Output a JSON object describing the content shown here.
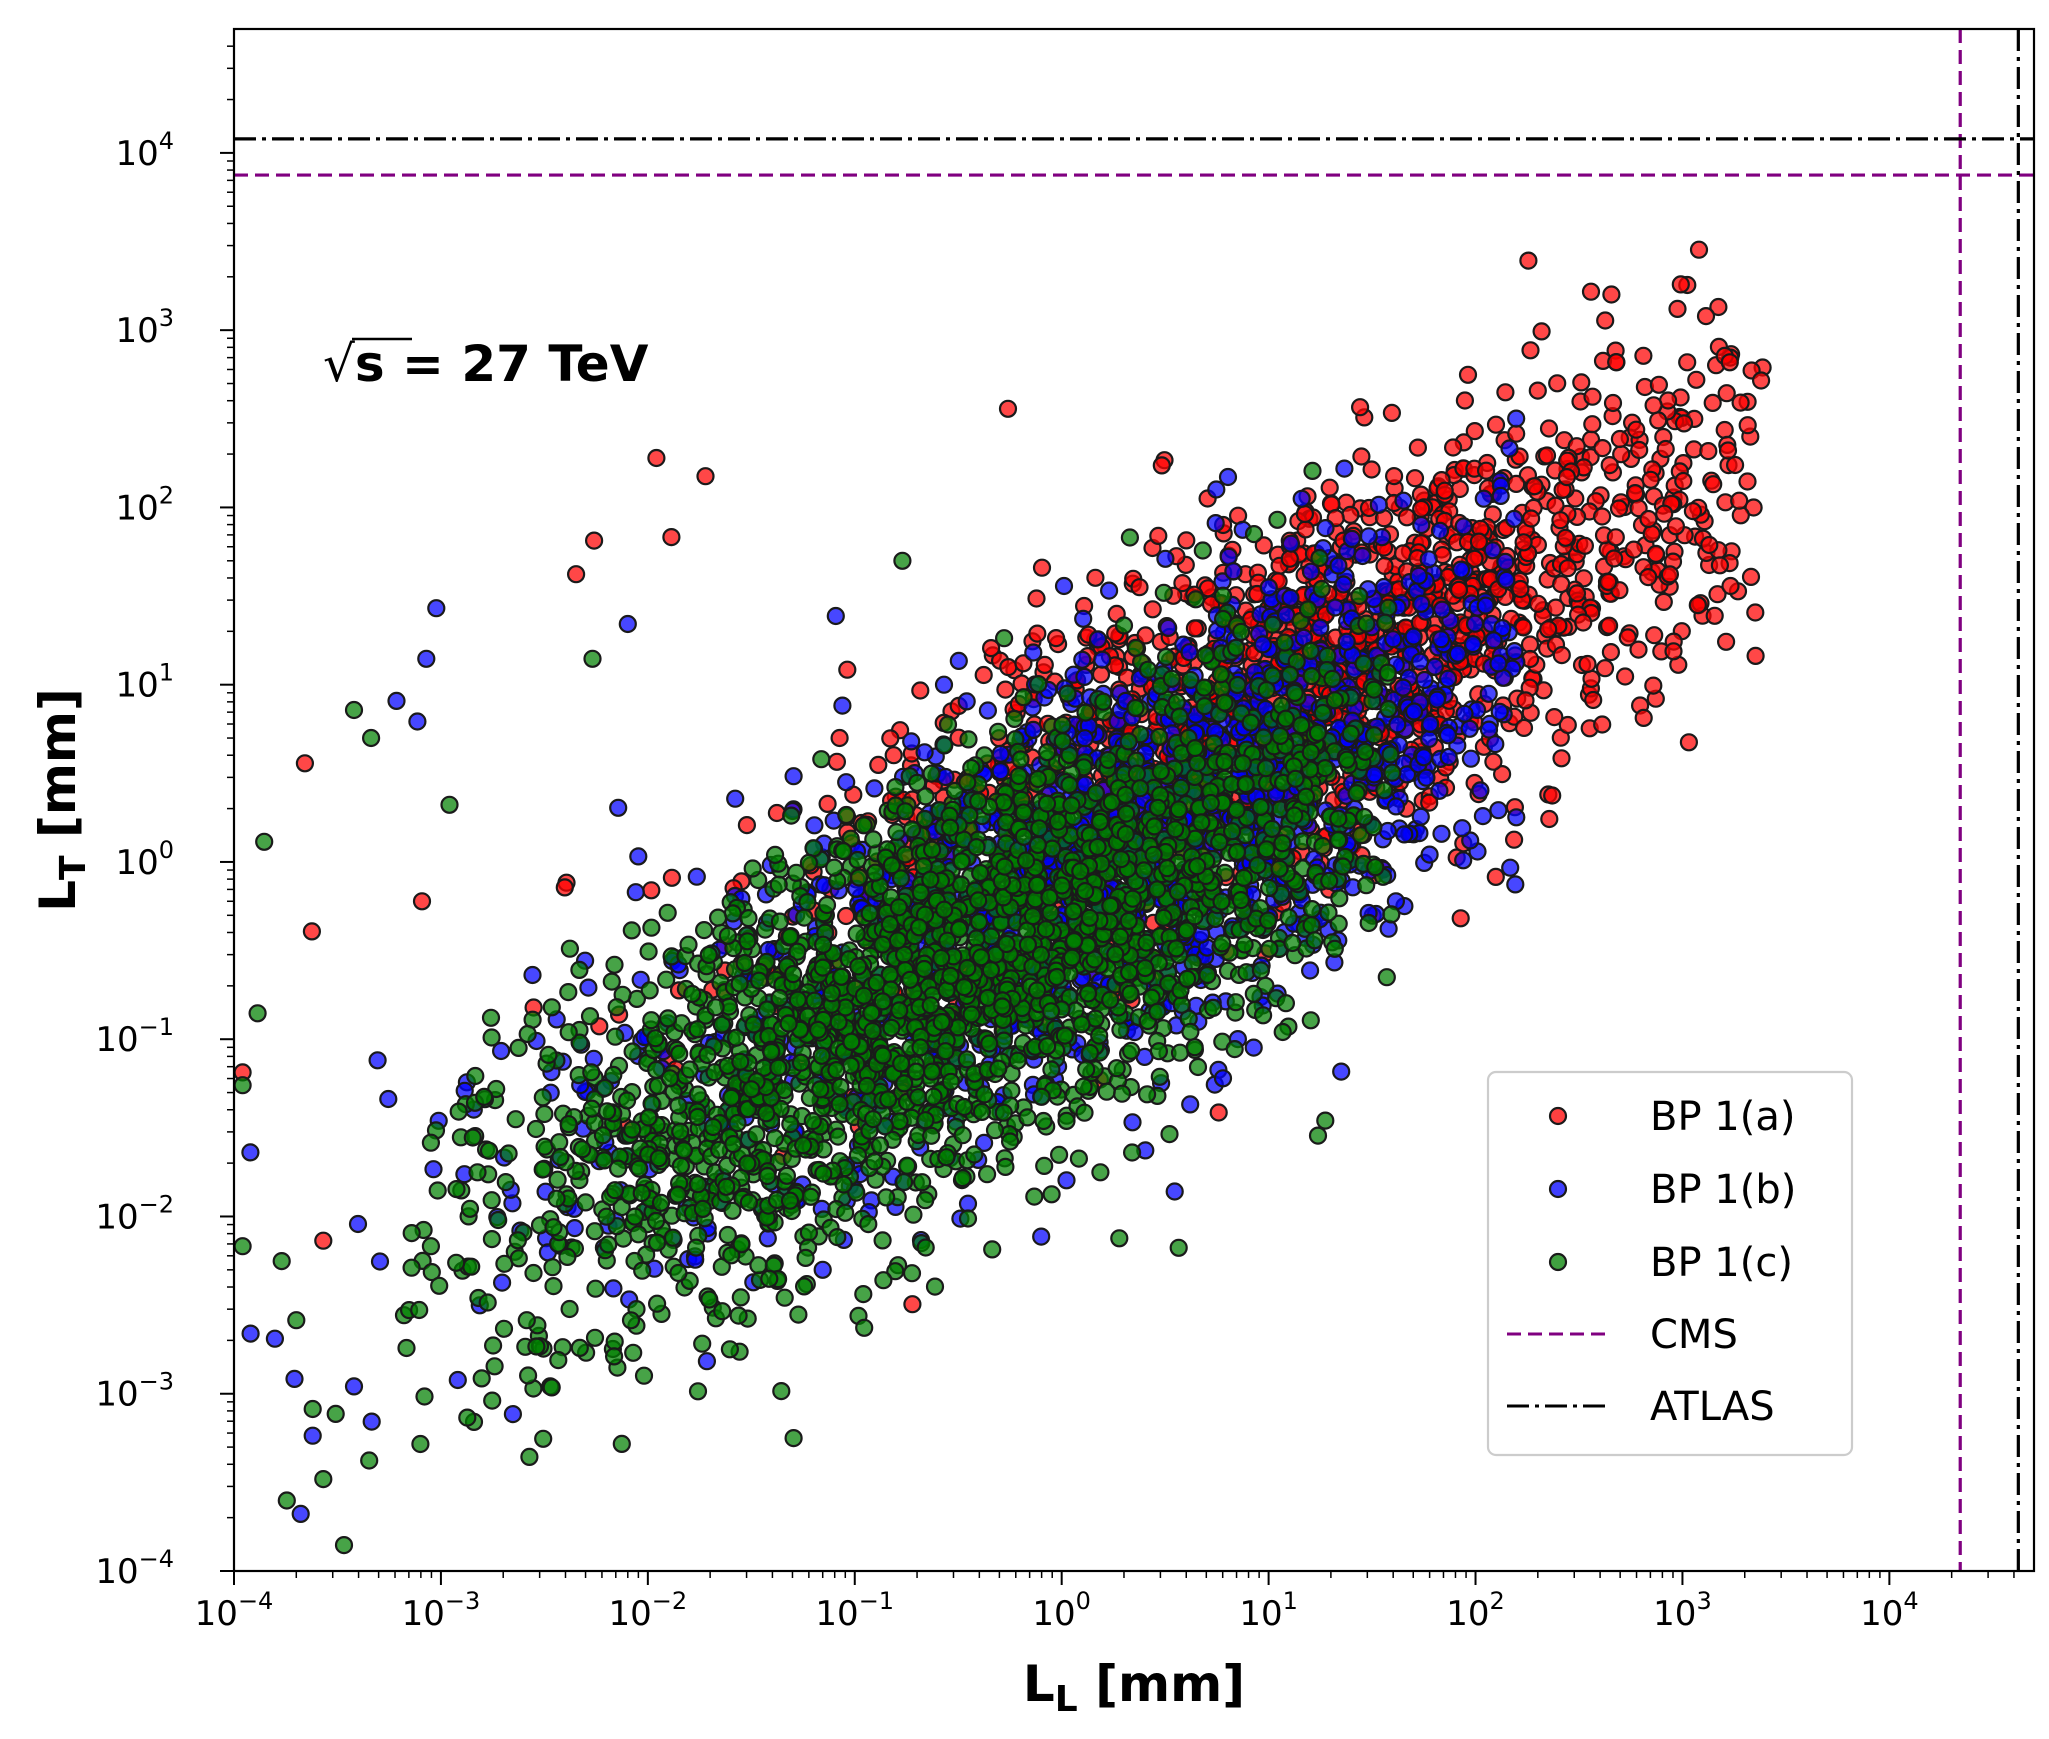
{
  "colors": {
    "bp1a": "#ff0000",
    "bp1b": "#0000ff",
    "bp1c": "#008000",
    "marker_edge": "#1a1a1a",
    "cms": "#800080",
    "atlas": "#000000"
  },
  "chart_data": {
    "type": "scatter",
    "x_scale": "log",
    "y_scale": "log",
    "xlabel": "L_L [mm]",
    "ylabel": "L_T [mm]",
    "xlabel_main": "L",
    "xlabel_sub": "L",
    "xlabel_unit": " [mm]",
    "ylabel_main": "L",
    "ylabel_sub": "T",
    "ylabel_unit": " [mm]",
    "xlim": [
      0.0001,
      50000
    ],
    "ylim": [
      0.0001,
      50000
    ],
    "x_ticks": [
      {
        "value": 0.0001,
        "base": "10",
        "exp": "−4"
      },
      {
        "value": 0.001,
        "base": "10",
        "exp": "−3"
      },
      {
        "value": 0.01,
        "base": "10",
        "exp": "−2"
      },
      {
        "value": 0.1,
        "base": "10",
        "exp": "−1"
      },
      {
        "value": 1,
        "base": "10",
        "exp": "0"
      },
      {
        "value": 10,
        "base": "10",
        "exp": "1"
      },
      {
        "value": 100,
        "base": "10",
        "exp": "2"
      },
      {
        "value": 1000,
        "base": "10",
        "exp": "3"
      },
      {
        "value": 10000,
        "base": "10",
        "exp": "4"
      }
    ],
    "y_ticks": [
      {
        "value": 0.0001,
        "base": "10",
        "exp": "−4"
      },
      {
        "value": 0.001,
        "base": "10",
        "exp": "−3"
      },
      {
        "value": 0.01,
        "base": "10",
        "exp": "−2"
      },
      {
        "value": 0.1,
        "base": "10",
        "exp": "−1"
      },
      {
        "value": 1,
        "base": "10",
        "exp": "0"
      },
      {
        "value": 10,
        "base": "10",
        "exp": "1"
      },
      {
        "value": 100,
        "base": "10",
        "exp": "2"
      },
      {
        "value": 1000,
        "base": "10",
        "exp": "3"
      },
      {
        "value": 10000,
        "base": "10",
        "exp": "4"
      }
    ],
    "annotation": {
      "prefix": "√",
      "radicand": "s",
      "rest": " = 27 TeV"
    },
    "legend": {
      "position": "lower-right",
      "entries": [
        {
          "label": "BP 1(a)",
          "kind": "marker",
          "color_key": "bp1a"
        },
        {
          "label": "BP 1(b)",
          "kind": "marker",
          "color_key": "bp1b"
        },
        {
          "label": "BP 1(c)",
          "kind": "marker",
          "color_key": "bp1c"
        },
        {
          "label": "CMS",
          "kind": "dashed",
          "color_key": "cms"
        },
        {
          "label": "ATLAS",
          "kind": "dashdot",
          "color_key": "atlas"
        }
      ]
    },
    "reference_lines": [
      {
        "name": "CMS",
        "orientation": "vertical",
        "value": 22000
      },
      {
        "name": "CMS",
        "orientation": "horizontal",
        "value": 7500
      },
      {
        "name": "ATLAS",
        "orientation": "vertical",
        "value": 42000
      },
      {
        "name": "ATLAS",
        "orientation": "horizontal",
        "value": 12000
      }
    ],
    "series": [
      {
        "name": "BP 1(a)",
        "color_key": "bp1a",
        "n_points": 1700,
        "log10_x_center": 1.2,
        "log10_x_spread": 1.25,
        "log10_y_center": 1.05,
        "log10_y_spread": 0.55,
        "log10_y_slope": 0.55,
        "log10_x_range": [
          -4,
          3.4
        ],
        "outliers": [
          {
            "x": 0.00022,
            "y": 3.6
          },
          {
            "x": 0.011,
            "y": 190
          },
          {
            "x": 0.019,
            "y": 150
          },
          {
            "x": 0.0055,
            "y": 65
          },
          {
            "x": 0.0045,
            "y": 42
          },
          {
            "x": 0.013,
            "y": 68
          },
          {
            "x": 0.00011,
            "y": 0.065
          },
          {
            "x": 2400,
            "y": 520
          },
          {
            "x": 1300,
            "y": 1200
          },
          {
            "x": 650,
            "y": 6.5
          },
          {
            "x": 0.19,
            "y": 0.0032
          },
          {
            "x": 0.55,
            "y": 360
          },
          {
            "x": 0.00027,
            "y": 0.0073
          },
          {
            "x": 0.00081,
            "y": 0.6
          }
        ]
      },
      {
        "name": "BP 1(b)",
        "color_key": "bp1b",
        "n_points": 1700,
        "log10_x_center": 0.3,
        "log10_x_spread": 1.2,
        "log10_y_center": 0.05,
        "log10_y_spread": 0.6,
        "log10_y_slope": 0.6,
        "log10_x_range": [
          -4,
          2.2
        ],
        "outliers": [
          {
            "x": 0.00095,
            "y": 27
          },
          {
            "x": 0.00085,
            "y": 14
          },
          {
            "x": 0.00077,
            "y": 6.2
          },
          {
            "x": 0.00061,
            "y": 8.1
          },
          {
            "x": 0.008,
            "y": 22
          },
          {
            "x": 0.00012,
            "y": 0.023
          },
          {
            "x": 0.00021,
            "y": 0.00021
          },
          {
            "x": 0.00024,
            "y": 0.00058
          },
          {
            "x": 2.2,
            "y": 0.034
          },
          {
            "x": 0.07,
            "y": 0.005
          },
          {
            "x": 60,
            "y": 1.1
          },
          {
            "x": 0.00038,
            "y": 0.0011
          }
        ]
      },
      {
        "name": "BP 1(c)",
        "color_key": "bp1c",
        "n_points": 2600,
        "log10_x_center": -0.5,
        "log10_x_spread": 1.15,
        "log10_y_center": -0.65,
        "log10_y_spread": 0.6,
        "log10_y_slope": 0.6,
        "log10_x_range": [
          -3.2,
          1.6
        ],
        "outliers": [
          {
            "x": 0.00038,
            "y": 7.2
          },
          {
            "x": 0.00046,
            "y": 5
          },
          {
            "x": 0.00014,
            "y": 1.3
          },
          {
            "x": 0.00013,
            "y": 0.14
          },
          {
            "x": 0.00011,
            "y": 0.055
          },
          {
            "x": 0.00011,
            "y": 0.0068
          },
          {
            "x": 0.00017,
            "y": 0.0056
          },
          {
            "x": 0.00018,
            "y": 0.00025
          },
          {
            "x": 0.00034,
            "y": 0.00014
          },
          {
            "x": 0.00027,
            "y": 0.00033
          },
          {
            "x": 0.00024,
            "y": 0.00082
          },
          {
            "x": 0.0002,
            "y": 0.0026
          },
          {
            "x": 0.0054,
            "y": 14
          },
          {
            "x": 0.17,
            "y": 50
          },
          {
            "x": 0.0011,
            "y": 2.1
          },
          {
            "x": 0.00031,
            "y": 0.00077
          },
          {
            "x": 0.00045,
            "y": 0.00042
          }
        ]
      }
    ]
  }
}
